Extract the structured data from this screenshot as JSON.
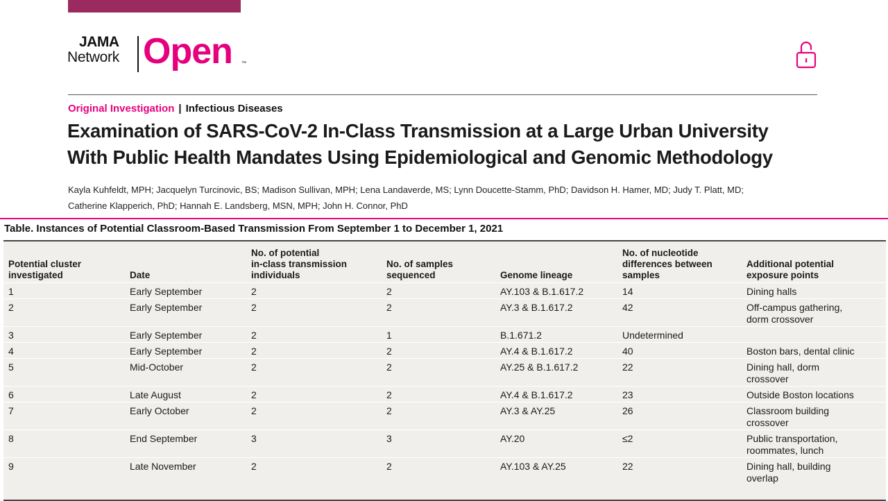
{
  "header": {
    "logo": {
      "jama": "JAMA",
      "network": "Network",
      "open": "Open",
      "tm": "™"
    },
    "accent_color": "#e6007e",
    "bar_color": "#9b2a60",
    "icon": "open-lock-icon"
  },
  "article": {
    "type": "Original Investigation",
    "separator": "|",
    "topic": "Infectious Diseases",
    "title_lines": [
      "Examination of SARS-CoV-2 In-Class Transmission at a Large Urban University",
      "With Public Health Mandates Using Epidemiological and Genomic Methodology"
    ],
    "author_lines": [
      "Kayla Kuhfeldt, MPH; Jacquelyn Turcinovic, BS; Madison Sullivan, MPH; Lena Landaverde, MS; Lynn Doucette-Stamm, PhD; Davidson H. Hamer, MD; Judy T. Platt, MD;",
      "Catherine Klapperich, PhD; Hannah E. Landsberg, MSN, MPH; John H. Connor, PhD"
    ]
  },
  "table": {
    "caption": "Table. Instances of Potential Classroom-Based Transmission From September 1 to December 1, 2021",
    "headers": [
      [
        "Potential cluster",
        "investigated"
      ],
      [
        "Date"
      ],
      [
        "No. of potential",
        "in-class transmission",
        "individuals"
      ],
      [
        "No. of samples",
        "sequenced"
      ],
      [
        "Genome lineage"
      ],
      [
        "No. of nucleotide",
        "differences between",
        "samples"
      ],
      [
        "Additional potential",
        "exposure points"
      ]
    ],
    "rows": [
      [
        [
          "1"
        ],
        [
          "Early September"
        ],
        [
          "2"
        ],
        [
          "2"
        ],
        [
          "AY.103 & B.1.617.2"
        ],
        [
          "14"
        ],
        [
          "Dining halls"
        ]
      ],
      [
        [
          "2"
        ],
        [
          "Early September"
        ],
        [
          "2"
        ],
        [
          "2"
        ],
        [
          "AY.3 & B.1.617.2"
        ],
        [
          "42"
        ],
        [
          "Off-campus gathering,",
          "dorm crossover"
        ]
      ],
      [
        [
          "3"
        ],
        [
          "Early September"
        ],
        [
          "2"
        ],
        [
          "1"
        ],
        [
          "B.1.671.2"
        ],
        [
          "Undetermined"
        ],
        [
          ""
        ]
      ],
      [
        [
          "4"
        ],
        [
          "Early September"
        ],
        [
          "2"
        ],
        [
          "2"
        ],
        [
          "AY.4 & B.1.617.2"
        ],
        [
          "40"
        ],
        [
          "Boston bars, dental clinic"
        ]
      ],
      [
        [
          "5"
        ],
        [
          "Mid-October"
        ],
        [
          "2"
        ],
        [
          "2"
        ],
        [
          "AY.25 & B.1.617.2"
        ],
        [
          "22"
        ],
        [
          "Dining hall, dorm",
          "crossover"
        ]
      ],
      [
        [
          "6"
        ],
        [
          "Late August"
        ],
        [
          "2"
        ],
        [
          "2"
        ],
        [
          "AY.4 & B.1.617.2"
        ],
        [
          "23"
        ],
        [
          "Outside Boston locations"
        ]
      ],
      [
        [
          "7"
        ],
        [
          "Early October"
        ],
        [
          "2"
        ],
        [
          "2"
        ],
        [
          "AY.3 & AY.25"
        ],
        [
          "26"
        ],
        [
          "Classroom building",
          "crossover"
        ]
      ],
      [
        [
          "8"
        ],
        [
          "End September"
        ],
        [
          "3"
        ],
        [
          "3"
        ],
        [
          "AY.20"
        ],
        [
          "≤2"
        ],
        [
          "Public transportation,",
          "roommates, lunch"
        ]
      ],
      [
        [
          "9"
        ],
        [
          "Late November"
        ],
        [
          "2"
        ],
        [
          "2"
        ],
        [
          "AY.103 & AY.25"
        ],
        [
          "22"
        ],
        [
          "Dining hall, building",
          "overlap"
        ]
      ]
    ]
  }
}
